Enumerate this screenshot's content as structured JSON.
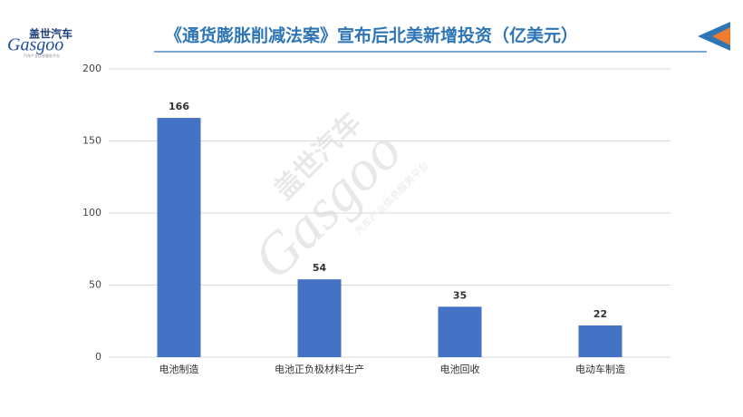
{
  "logo": {
    "name": "盖世汽车",
    "brand": "Gasgoo",
    "slogan": "汽车产业信息服务平台"
  },
  "chart_data": {
    "type": "bar",
    "title": "《通货膨胀削减法案》宣布后北美新增投资（亿美元）",
    "categories": [
      "电池制造",
      "电池正负极材料生产",
      "电池回收",
      "电动车制造"
    ],
    "values": [
      166,
      54,
      35,
      22
    ],
    "color": "#4472c4",
    "ylim": [
      0,
      200
    ],
    "yticks": [
      0,
      50,
      100,
      150,
      200
    ],
    "grid": true
  }
}
